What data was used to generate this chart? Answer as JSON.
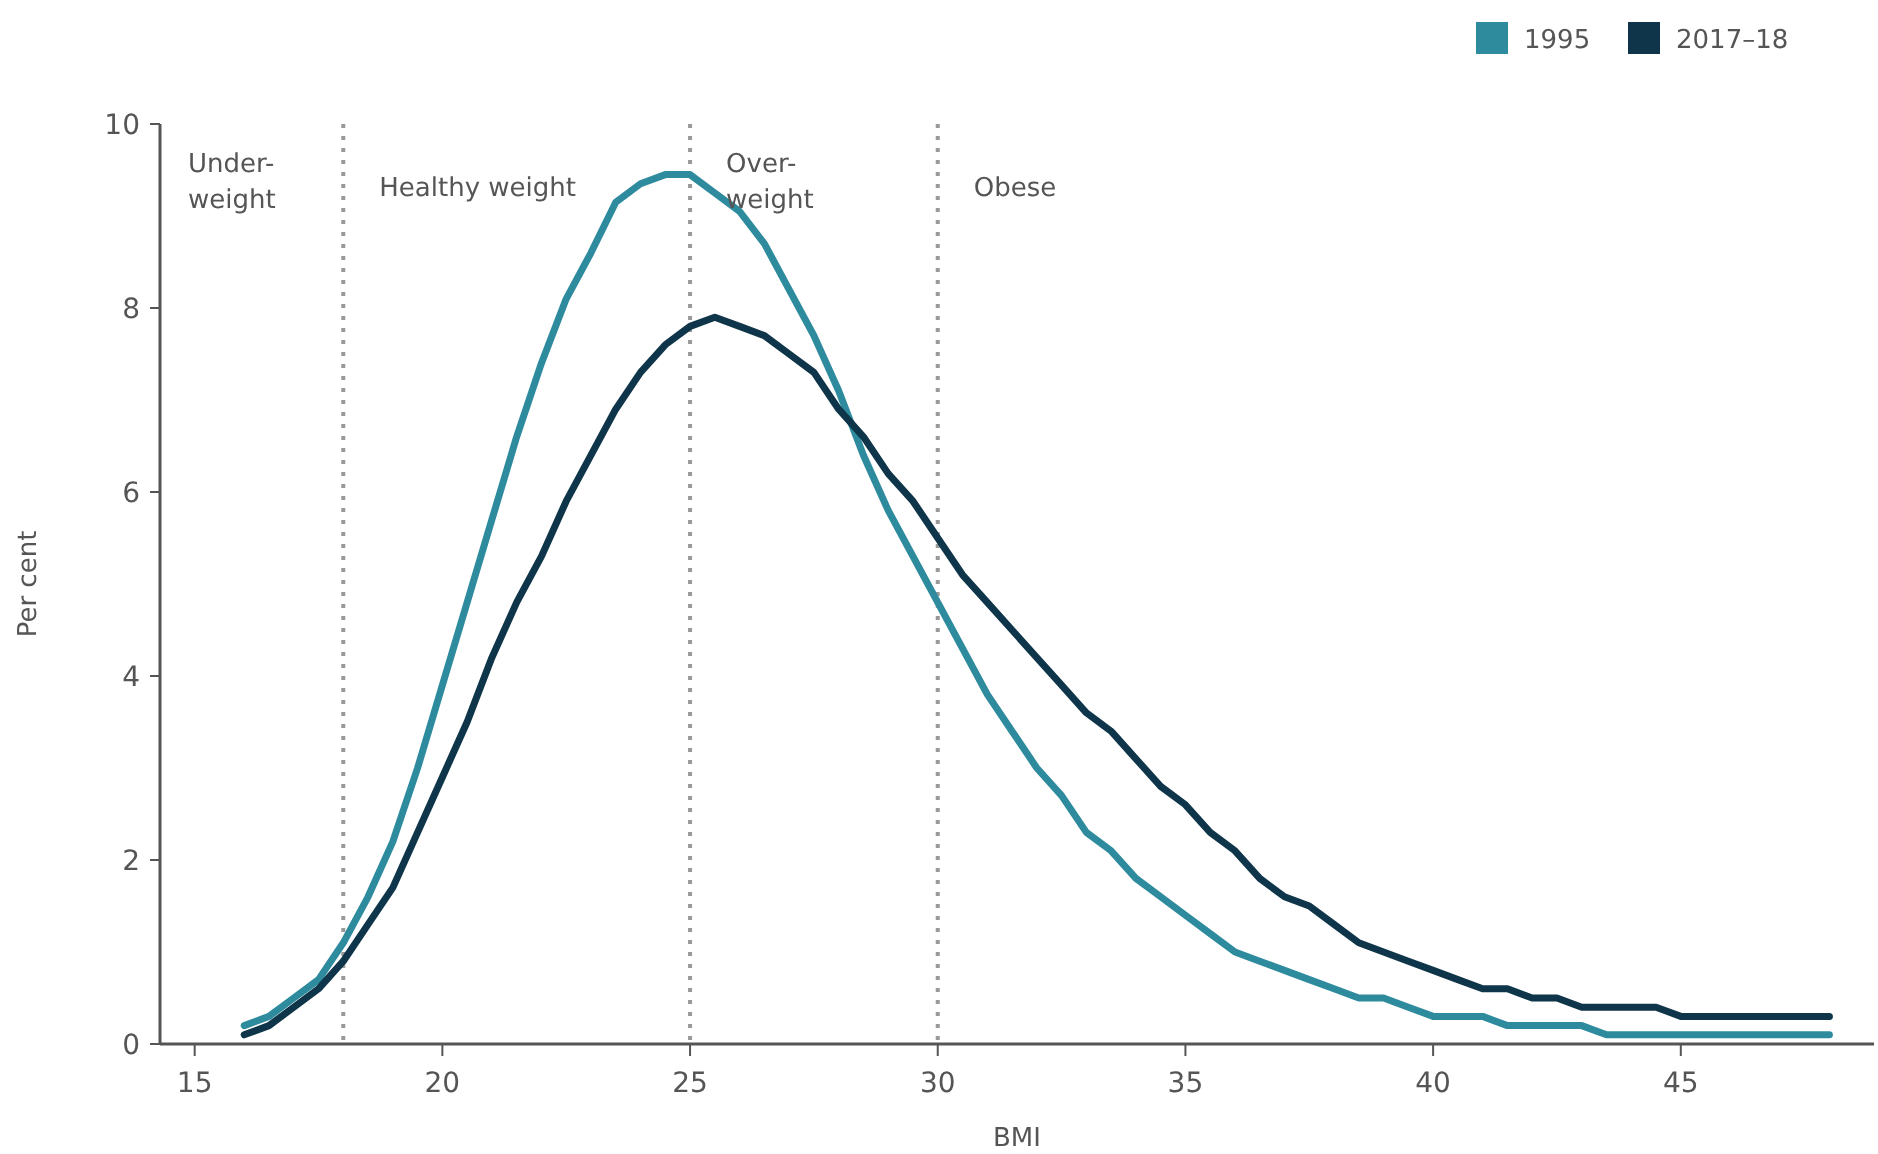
{
  "chart_data": {
    "type": "line",
    "xlabel": "BMI",
    "ylabel": "Per cent",
    "xlim": [
      14.3,
      48.9
    ],
    "xticks": [
      15,
      20,
      25,
      30,
      35,
      40,
      45
    ],
    "ylim": [
      0,
      10
    ],
    "yticks": [
      0,
      2,
      4,
      6,
      8,
      10
    ],
    "grid": false,
    "legend": "top right",
    "marker": "none",
    "line_style": "solid",
    "x": [
      16,
      16.5,
      17,
      17.5,
      18,
      18.5,
      19,
      19.5,
      20,
      20.5,
      21,
      21.5,
      22,
      22.5,
      23,
      23.5,
      24,
      24.5,
      25,
      25.5,
      26,
      26.5,
      27,
      27.5,
      28,
      28.5,
      29,
      29.5,
      30,
      30.5,
      31,
      31.5,
      32,
      32.5,
      33,
      33.5,
      34,
      34.5,
      35,
      35.5,
      36,
      36.5,
      37,
      37.5,
      38,
      38.5,
      39,
      39.5,
      40,
      40.5,
      41,
      41.5,
      42,
      42.5,
      43,
      43.5,
      44,
      44.5,
      45,
      45.5,
      46,
      46.5,
      47,
      47.5,
      48
    ],
    "series": [
      {
        "name": "1995",
        "color": "#2e8b9e",
        "values": [
          0.2,
          0.3,
          0.5,
          0.7,
          1.1,
          1.6,
          2.2,
          3.0,
          3.9,
          4.8,
          5.7,
          6.6,
          7.4,
          8.1,
          8.6,
          9.15,
          9.35,
          9.45,
          9.45,
          9.25,
          9.05,
          8.7,
          8.2,
          7.7,
          7.1,
          6.4,
          5.8,
          5.3,
          4.8,
          4.3,
          3.8,
          3.4,
          3.0,
          2.7,
          2.3,
          2.1,
          1.8,
          1.6,
          1.4,
          1.2,
          1.0,
          0.9,
          0.8,
          0.7,
          0.6,
          0.5,
          0.5,
          0.4,
          0.3,
          0.3,
          0.3,
          0.2,
          0.2,
          0.2,
          0.2,
          0.1,
          0.1,
          0.1,
          0.1,
          0.1,
          0.1,
          0.1,
          0.1,
          0.1,
          0.1
        ]
      },
      {
        "name": "2017–18",
        "color": "#0e3549",
        "values": [
          0.1,
          0.2,
          0.4,
          0.6,
          0.9,
          1.3,
          1.7,
          2.3,
          2.9,
          3.5,
          4.2,
          4.8,
          5.3,
          5.9,
          6.4,
          6.9,
          7.3,
          7.6,
          7.8,
          7.9,
          7.8,
          7.7,
          7.5,
          7.3,
          6.9,
          6.6,
          6.2,
          5.9,
          5.5,
          5.1,
          4.8,
          4.5,
          4.2,
          3.9,
          3.6,
          3.4,
          3.1,
          2.8,
          2.6,
          2.3,
          2.1,
          1.8,
          1.6,
          1.5,
          1.3,
          1.1,
          1.0,
          0.9,
          0.8,
          0.7,
          0.6,
          0.6,
          0.5,
          0.5,
          0.4,
          0.4,
          0.4,
          0.4,
          0.3,
          0.3,
          0.3,
          0.3,
          0.3,
          0.3,
          0.3
        ]
      }
    ],
    "ref_lines": [
      {
        "axis": "x",
        "value": 18,
        "color": "#999999",
        "line_style": "dotted"
      },
      {
        "axis": "x",
        "value": 25,
        "color": "#999999",
        "line_style": "dotted"
      },
      {
        "axis": "x",
        "value": 30,
        "color": "#999999",
        "line_style": "dotted"
      }
    ],
    "annotations": [
      "Under-\nweight",
      "Healthy weight",
      "Over-\nweight",
      "Obese"
    ]
  }
}
